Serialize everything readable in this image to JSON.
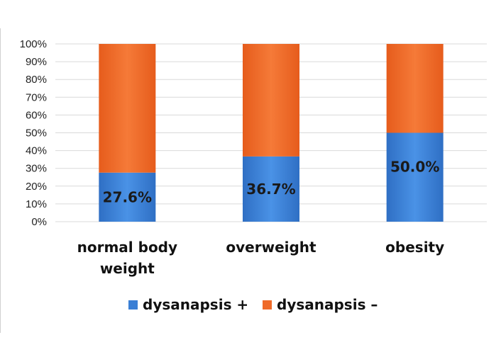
{
  "chart_data": {
    "type": "bar",
    "stacked": true,
    "categories": [
      "normal body weight",
      "overweight",
      "obesity"
    ],
    "category_lines": [
      [
        "normal body",
        "weight"
      ],
      [
        "overweight"
      ],
      [
        "obesity"
      ]
    ],
    "series": [
      {
        "name": "dysanapsis +",
        "values": [
          27.6,
          36.7,
          50.0
        ],
        "color": "#3a7fd5"
      },
      {
        "name": "dysanapsis –",
        "values": [
          72.4,
          63.3,
          50.0
        ],
        "color": "#ef6a28"
      }
    ],
    "data_labels": [
      "27.6%",
      "36.7%",
      "50.0%"
    ],
    "ylim": [
      0,
      100
    ],
    "yticks": [
      "0%",
      "10%",
      "20%",
      "30%",
      "40%",
      "50%",
      "60%",
      "70%",
      "80%",
      "90%",
      "100%"
    ],
    "grid": true,
    "legend_position": "bottom"
  }
}
